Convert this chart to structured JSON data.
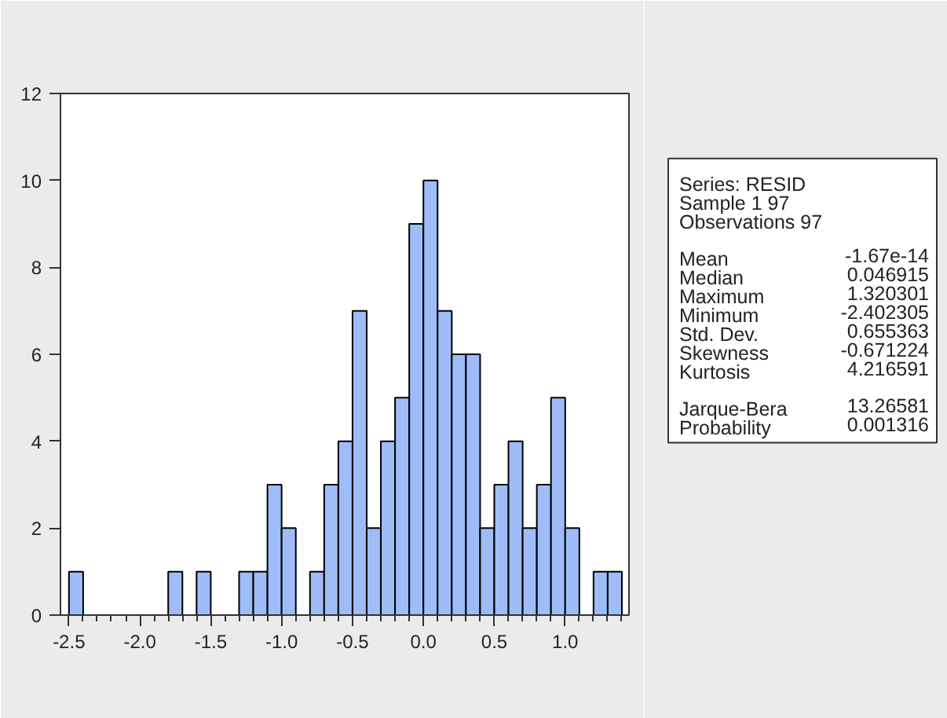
{
  "chart_data": {
    "type": "histogram",
    "bins": [
      -2.5,
      -2.4,
      -2.3,
      -2.2,
      -2.1,
      -2.0,
      -1.9,
      -1.8,
      -1.7,
      -1.6,
      -1.5,
      -1.4,
      -1.3,
      -1.2,
      -1.1,
      -1.0,
      -0.9,
      -0.8,
      -0.7,
      -0.6,
      -0.5,
      -0.4,
      -0.3,
      -0.2,
      -0.1,
      0.0,
      0.1,
      0.2,
      0.3,
      0.4,
      0.5,
      0.6,
      0.7,
      0.8,
      0.9,
      1.0,
      1.1,
      1.2,
      1.3,
      1.4
    ],
    "values": [
      1,
      0,
      0,
      0,
      0,
      0,
      0,
      1,
      0,
      1,
      0,
      0,
      1,
      1,
      3,
      2,
      0,
      1,
      3,
      4,
      7,
      2,
      4,
      5,
      9,
      10,
      7,
      6,
      6,
      2,
      3,
      4,
      2,
      3,
      5,
      2,
      0,
      1,
      1
    ],
    "color": "#9ebcf8",
    "xlim": [
      -2.56,
      1.45
    ],
    "xticks": [
      -2.5,
      {
        "value": -2.0,
        "label": "-2.0"
      },
      -1.5,
      {
        "value": -1.0,
        "label": "-1.0"
      },
      -0.5,
      {
        "value": 0.0,
        "label": "0.0"
      },
      0.5,
      {
        "value": 1.0,
        "label": "1.0"
      }
    ],
    "ylim": [
      0,
      12
    ],
    "yticks": [
      0,
      2,
      4,
      6,
      8,
      10,
      12
    ],
    "grid": false,
    "annotations": [
      "Series: RESID",
      "Sample 1 97",
      "Observations 97",
      "Mean\t-1.67e-14",
      "Median\t0.046915",
      "Maximum\t1.320301",
      "Minimum\t-2.402305",
      "Std. Dev.\t0.655363",
      "Skewness\t-0.671224",
      "Kurtosis\t4.216591",
      "Jarque-Bera\t13.26581",
      "Probability\t0.001316"
    ]
  }
}
